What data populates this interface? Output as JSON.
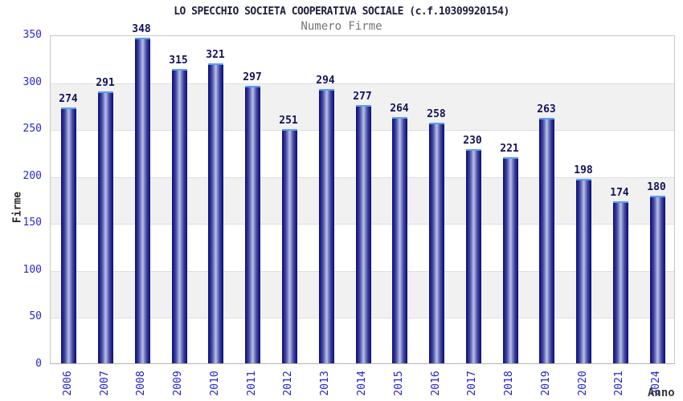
{
  "chart_data": {
    "type": "bar",
    "title": "LO SPECCHIO SOCIETA COOPERATIVA SOCIALE (c.f.10309920154)",
    "subtitle": "Numero Firme",
    "xlabel": "Anno",
    "ylabel": "Firme",
    "categories": [
      "2006",
      "2007",
      "2008",
      "2009",
      "2010",
      "2011",
      "2012",
      "2013",
      "2014",
      "2015",
      "2016",
      "2017",
      "2018",
      "2019",
      "2020",
      "2021",
      "2024"
    ],
    "values": [
      274,
      291,
      348,
      315,
      321,
      297,
      251,
      294,
      277,
      264,
      258,
      230,
      221,
      263,
      198,
      174,
      180
    ],
    "ylim": [
      0,
      350
    ],
    "yticks": [
      0,
      50,
      100,
      150,
      200,
      250,
      300,
      350
    ],
    "gray_bands": [
      [
        50,
        100
      ],
      [
        150,
        200
      ],
      [
        250,
        300
      ]
    ],
    "legend": "none",
    "grid": "horizontal-50",
    "colors": {
      "bar_edge": "#10106e",
      "bar_center": "#b6bee4",
      "bar_cap": "#55a0f2",
      "value_label": "#13135c",
      "tick_label_blue": "#2727cf",
      "title": "#1e1e3e",
      "subtitle": "#757575",
      "axis_label": "#3a3a3a",
      "band": "#f1f1f2",
      "gridline": "#dedede",
      "plot_border": "#c8c8c8",
      "background": "#ffffff"
    }
  }
}
